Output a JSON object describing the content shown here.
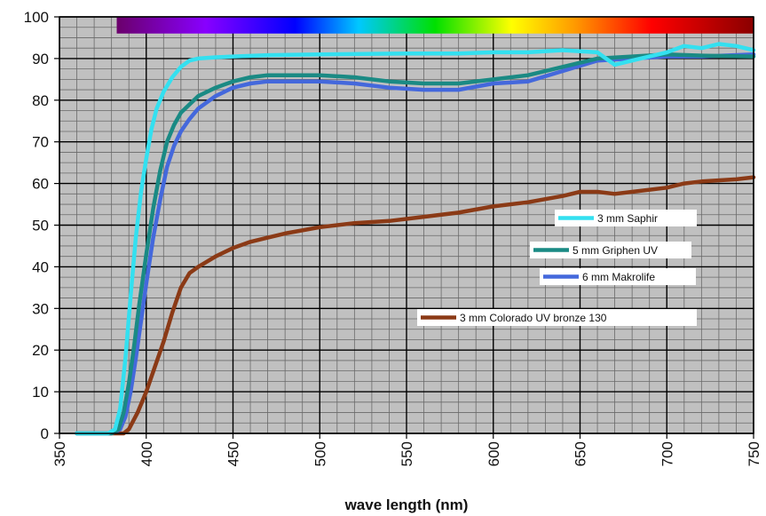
{
  "chart_data": {
    "type": "line",
    "title": "",
    "xlabel": "wave length (nm)",
    "ylabel": "",
    "xlim": [
      350,
      750
    ],
    "ylim": [
      0,
      100
    ],
    "x_ticks": [
      350,
      400,
      450,
      500,
      550,
      600,
      650,
      700,
      750
    ],
    "y_ticks": [
      0,
      10,
      20,
      30,
      40,
      50,
      60,
      70,
      80,
      90,
      100
    ],
    "grid": true,
    "plot_background": "#c0c0c0",
    "spectrum_bar": {
      "x_start": 383,
      "x_end": 750,
      "y_bottom": 96,
      "y_top": 100
    },
    "legend": "center-right",
    "series": [
      {
        "name": "3 mm Saphir",
        "color": "#33e0f0",
        "x": [
          360,
          370,
          378,
          382,
          385,
          388,
          391,
          394,
          397,
          400,
          403,
          406,
          410,
          415,
          420,
          425,
          430,
          440,
          450,
          470,
          500,
          550,
          580,
          600,
          620,
          640,
          660,
          665,
          670,
          675,
          680,
          690,
          700,
          710,
          720,
          730,
          740,
          750
        ],
        "values": [
          0,
          0,
          0,
          1,
          6,
          18,
          33,
          47,
          58,
          66,
          73,
          78,
          82,
          85.5,
          88,
          89.5,
          90,
          90.3,
          90.5,
          90.8,
          91,
          91.2,
          91.2,
          91.5,
          91.5,
          92,
          91.5,
          90,
          88.5,
          89,
          89.5,
          90.5,
          91.5,
          93,
          92.5,
          93.5,
          93,
          92
        ]
      },
      {
        "name": "5 mm Griphen UV",
        "color": "#1a8a84",
        "x": [
          360,
          370,
          380,
          384,
          387,
          390,
          393,
          396,
          400,
          404,
          408,
          412,
          416,
          420,
          425,
          430,
          440,
          450,
          460,
          470,
          480,
          500,
          520,
          540,
          560,
          580,
          600,
          620,
          640,
          660,
          680,
          700,
          720,
          750
        ],
        "values": [
          0,
          0,
          0,
          1,
          5,
          12,
          21,
          31,
          43,
          54,
          63,
          70,
          74,
          77,
          79,
          81,
          83,
          84.5,
          85.5,
          86,
          86,
          86,
          85.5,
          84.5,
          84,
          84,
          85,
          86,
          88,
          90,
          90.5,
          91,
          90.7,
          90.5
        ]
      },
      {
        "name": "6 mm Makrolife",
        "color": "#4468dc",
        "x": [
          360,
          370,
          380,
          385,
          388,
          391,
          394,
          397,
          400,
          404,
          408,
          412,
          416,
          420,
          425,
          430,
          440,
          450,
          460,
          470,
          480,
          500,
          520,
          540,
          560,
          580,
          600,
          620,
          640,
          660,
          680,
          700,
          720,
          750
        ],
        "values": [
          0,
          0,
          0,
          1,
          4,
          10,
          18,
          27,
          36,
          47,
          56,
          64,
          69,
          72.5,
          75.5,
          78,
          81,
          83,
          84,
          84.5,
          84.5,
          84.5,
          84,
          83,
          82.5,
          82.5,
          84,
          84.5,
          87,
          89.5,
          90,
          90.5,
          90.5,
          91
        ]
      },
      {
        "name": "3 mm Colorado UV bronze 130",
        "color": "#8b3a16",
        "x": [
          360,
          370,
          380,
          387,
          390,
          395,
          400,
          405,
          410,
          415,
          420,
          425,
          430,
          440,
          450,
          460,
          470,
          480,
          500,
          520,
          540,
          560,
          580,
          600,
          620,
          640,
          650,
          660,
          670,
          680,
          700,
          710,
          720,
          740,
          750
        ],
        "values": [
          0,
          0,
          0,
          0,
          1,
          5,
          10,
          16,
          22,
          29,
          35,
          38.5,
          40,
          42.5,
          44.5,
          46,
          47,
          48,
          49.5,
          50.5,
          51,
          52,
          53,
          54.5,
          55.5,
          57,
          58,
          58,
          57.5,
          58,
          59,
          60,
          60.5,
          61,
          61.5
        ]
      }
    ]
  }
}
